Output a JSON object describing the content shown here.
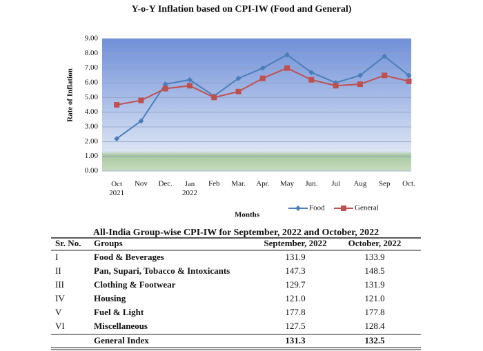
{
  "chart_data": {
    "type": "line",
    "title": "Y-o-Y Inflation based on CPI-IW (Food and General)",
    "x_label": "Months",
    "y_label": "Rate of Inflation",
    "categories": [
      "Oct\n2021",
      "Nov",
      "Dec.",
      "Jan\n2022",
      "Feb",
      "Mar.",
      "Apr.",
      "May",
      "Jun.",
      "Jul",
      "Aug",
      "Sep",
      "Oct."
    ],
    "series": [
      {
        "name": "Food",
        "color": "#4a7ebb",
        "marker": "diamond",
        "values": [
          2.2,
          3.4,
          5.9,
          6.2,
          5.1,
          6.3,
          7.0,
          7.9,
          6.7,
          6.0,
          6.5,
          7.8,
          6.5
        ]
      },
      {
        "name": "General",
        "color": "#c0504d",
        "marker": "square",
        "values": [
          4.5,
          4.8,
          5.6,
          5.8,
          5.0,
          5.4,
          6.3,
          7.0,
          6.2,
          5.8,
          5.9,
          6.5,
          6.1
        ]
      }
    ],
    "ylim": [
      0,
      9
    ],
    "yticks": [
      {
        "value": 0,
        "label": "0.00"
      },
      {
        "value": 1,
        "label": "1.00"
      },
      {
        "value": 2,
        "label": "2.00"
      },
      {
        "value": 3,
        "label": "3.00"
      },
      {
        "value": 4,
        "label": "4.00"
      },
      {
        "value": 5,
        "label": "5.00"
      },
      {
        "value": 6,
        "label": "6.00"
      },
      {
        "value": 7,
        "label": "7.00"
      },
      {
        "value": 8,
        "label": "8.00"
      },
      {
        "value": 9,
        "label": "9.00"
      }
    ],
    "grid": true,
    "legend": "bottom-right"
  },
  "table": {
    "title": "All-India Group-wise CPI-IW for September, 2022 and October, 2022",
    "header": [
      "Sr. No.",
      "Groups",
      "September, 2022",
      "October, 2022"
    ],
    "rows": [
      [
        "I",
        "Food & Beverages",
        "131.9",
        "133.9"
      ],
      [
        "II",
        "Pan, Supari, Tobacco & Intoxicants",
        "147.3",
        "148.5"
      ],
      [
        "III",
        "Clothing & Footwear",
        "129.7",
        "131.9"
      ],
      [
        "IV",
        "Housing",
        "121.0",
        "121.0"
      ],
      [
        "V",
        "Fuel & Light",
        "177.8",
        "177.8"
      ],
      [
        "VI",
        "Miscellaneous",
        "127.5",
        "128.4"
      ]
    ],
    "total": {
      "label": "General Index",
      "september": "131.3",
      "october": "132.5"
    }
  }
}
